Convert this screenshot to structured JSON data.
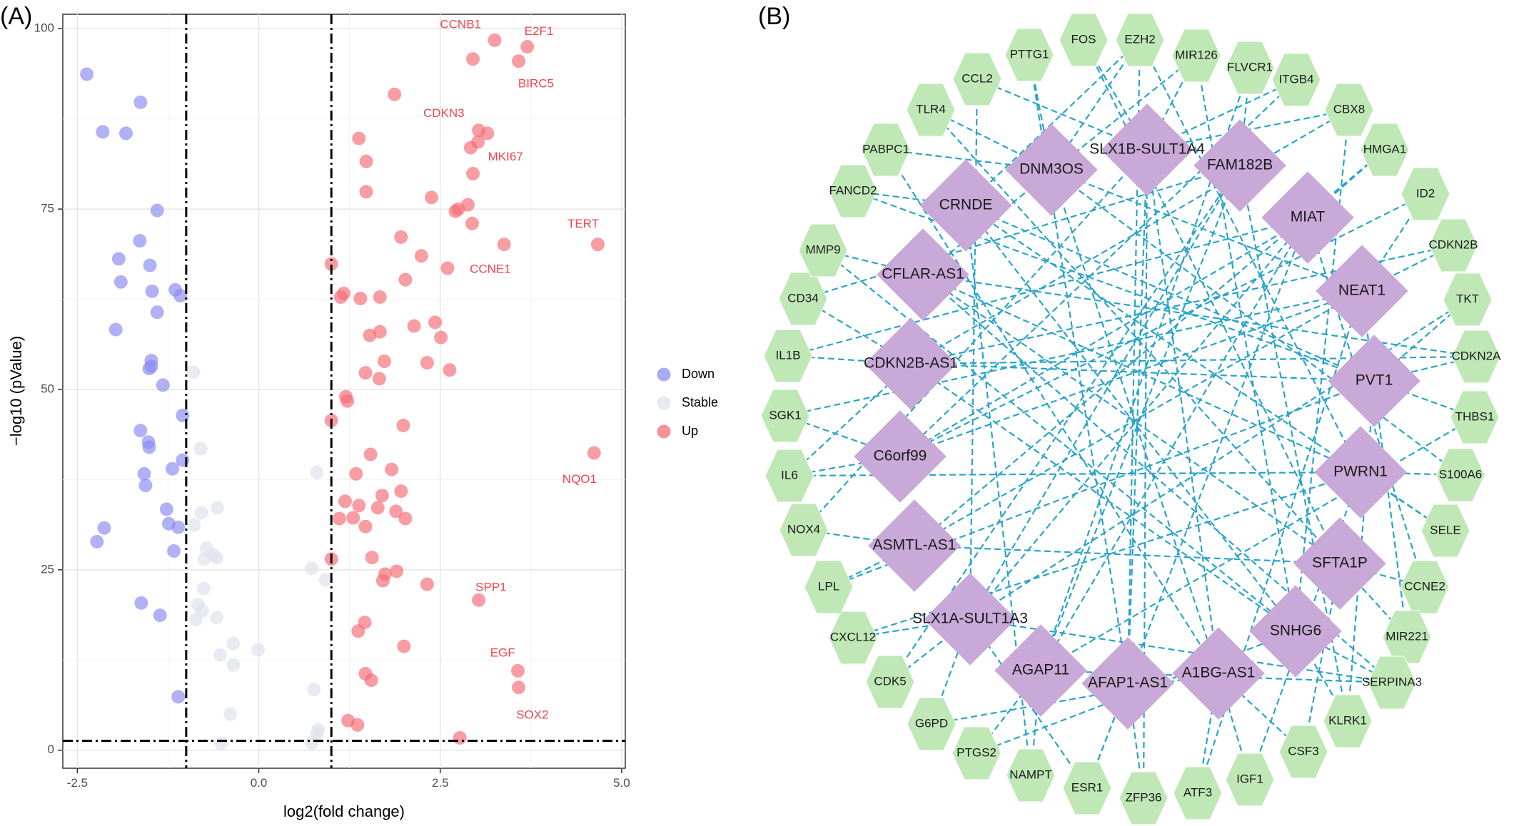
{
  "panel_a_label": "(A)",
  "panel_b_label": "(B)",
  "colors": {
    "down": "#8c8cf0",
    "stable": "#dde2ea",
    "up": "#f46e78",
    "gene_label": "#f0454e",
    "hub_fill": "#c9a9d8",
    "gene_fill": "#bfe8b6",
    "edge": "#2aa4c8"
  },
  "chart_data": [
    {
      "type": "scatter",
      "title": "",
      "xlabel": "log2(fold change)",
      "ylabel": "−log10 (pValue)",
      "xlim": [
        -2.7,
        5.05
      ],
      "ylim": [
        -2.5,
        102
      ],
      "xticks": [
        -2.5,
        0.0,
        2.5,
        5.0
      ],
      "xtick_labels": [
        "-2.5",
        "0.0",
        "2.5",
        "5.0"
      ],
      "yticks": [
        0,
        25,
        50,
        75,
        100
      ],
      "grid": true,
      "legend_position": "right",
      "reference_lines": {
        "vertical": [
          -1,
          1
        ],
        "horizontal": [
          1.3
        ]
      },
      "series": [
        {
          "name": "Down",
          "points": [
            [
              -2.37,
              93.7
            ],
            [
              -1.63,
              89.8
            ],
            [
              -2.15,
              85.7
            ],
            [
              -1.83,
              85.5
            ],
            [
              -1.4,
              74.8
            ],
            [
              -1.64,
              70.6
            ],
            [
              -1.93,
              68.1
            ],
            [
              -1.5,
              67.2
            ],
            [
              -1.9,
              64.9
            ],
            [
              -1.47,
              63.6
            ],
            [
              -1.15,
              63.8
            ],
            [
              -1.08,
              63.0
            ],
            [
              -1.4,
              60.7
            ],
            [
              -1.97,
              58.3
            ],
            [
              -1.48,
              54.0
            ],
            [
              -1.51,
              52.9
            ],
            [
              -1.48,
              53.2
            ],
            [
              -1.32,
              50.6
            ],
            [
              -1.05,
              46.4
            ],
            [
              -1.63,
              44.3
            ],
            [
              -1.52,
              42.7
            ],
            [
              -1.51,
              42.0
            ],
            [
              -1.05,
              40.2
            ],
            [
              -1.19,
              39.0
            ],
            [
              -1.58,
              38.3
            ],
            [
              -1.56,
              36.7
            ],
            [
              -1.27,
              33.4
            ],
            [
              -1.24,
              31.4
            ],
            [
              -1.11,
              30.9
            ],
            [
              -2.13,
              30.8
            ],
            [
              -2.23,
              28.9
            ],
            [
              -1.17,
              27.6
            ],
            [
              -1.62,
              20.4
            ],
            [
              -1.36,
              18.7
            ],
            [
              -1.11,
              7.4
            ]
          ]
        },
        {
          "name": "Stable",
          "points": [
            [
              -0.9,
              52.4
            ],
            [
              -0.8,
              41.8
            ],
            [
              0.8,
              38.5
            ],
            [
              -0.57,
              33.6
            ],
            [
              -0.79,
              32.9
            ],
            [
              -0.89,
              31.2
            ],
            [
              -0.72,
              28.0
            ],
            [
              -0.63,
              27.1
            ],
            [
              -0.58,
              26.7
            ],
            [
              -0.75,
              26.5
            ],
            [
              0.73,
              25.2
            ],
            [
              0.92,
              23.6
            ],
            [
              -0.76,
              22.4
            ],
            [
              -0.84,
              20.2
            ],
            [
              -0.78,
              19.3
            ],
            [
              -0.58,
              18.4
            ],
            [
              -0.87,
              18.1
            ],
            [
              -0.35,
              14.8
            ],
            [
              -0.01,
              13.9
            ],
            [
              -0.53,
              13.2
            ],
            [
              -0.35,
              11.8
            ],
            [
              0.76,
              8.4
            ],
            [
              -0.39,
              5.0
            ],
            [
              0.82,
              2.8
            ],
            [
              0.8,
              2.3
            ],
            [
              0.73,
              1.0
            ],
            [
              -0.52,
              0.9
            ]
          ]
        },
        {
          "name": "Up",
          "points": [
            [
              3.25,
              98.4
            ],
            [
              3.7,
              97.5
            ],
            [
              3.58,
              95.5
            ],
            [
              2.95,
              95.8
            ],
            [
              1.87,
              90.9
            ],
            [
              3.03,
              85.9
            ],
            [
              3.15,
              85.5
            ],
            [
              3.02,
              84.3
            ],
            [
              2.92,
              83.5
            ],
            [
              1.38,
              84.8
            ],
            [
              1.48,
              81.6
            ],
            [
              2.95,
              79.9
            ],
            [
              1.48,
              77.4
            ],
            [
              2.38,
              76.6
            ],
            [
              2.88,
              75.6
            ],
            [
              2.75,
              75.0
            ],
            [
              2.71,
              74.7
            ],
            [
              2.94,
              73.0
            ],
            [
              1.96,
              71.1
            ],
            [
              3.38,
              70.1
            ],
            [
              4.67,
              70.1
            ],
            [
              2.24,
              68.5
            ],
            [
              1.0,
              67.4
            ],
            [
              2.6,
              66.8
            ],
            [
              2.02,
              65.2
            ],
            [
              1.17,
              63.3
            ],
            [
              1.13,
              62.8
            ],
            [
              1.4,
              62.6
            ],
            [
              1.67,
              62.8
            ],
            [
              2.43,
              59.3
            ],
            [
              2.14,
              58.8
            ],
            [
              1.67,
              58.0
            ],
            [
              1.53,
              57.5
            ],
            [
              2.51,
              57.2
            ],
            [
              1.73,
              53.9
            ],
            [
              2.32,
              53.7
            ],
            [
              2.63,
              52.7
            ],
            [
              1.47,
              52.3
            ],
            [
              1.66,
              51.5
            ],
            [
              1.2,
              49.0
            ],
            [
              1.22,
              48.4
            ],
            [
              1.0,
              45.7
            ],
            [
              1.99,
              45.0
            ],
            [
              4.62,
              41.2
            ],
            [
              1.54,
              41.0
            ],
            [
              1.83,
              38.9
            ],
            [
              1.34,
              38.3
            ],
            [
              1.96,
              35.9
            ],
            [
              1.7,
              35.3
            ],
            [
              1.19,
              34.5
            ],
            [
              1.38,
              33.9
            ],
            [
              1.64,
              33.6
            ],
            [
              1.89,
              33.1
            ],
            [
              1.3,
              32.2
            ],
            [
              1.11,
              32.1
            ],
            [
              2.02,
              32.1
            ],
            [
              1.47,
              31.0
            ],
            [
              1.0,
              26.5
            ],
            [
              1.56,
              26.7
            ],
            [
              1.9,
              24.8
            ],
            [
              1.74,
              24.4
            ],
            [
              1.71,
              23.5
            ],
            [
              2.32,
              23.0
            ],
            [
              3.03,
              20.8
            ],
            [
              1.46,
              17.7
            ],
            [
              1.37,
              16.5
            ],
            [
              2.0,
              14.4
            ],
            [
              3.57,
              11.0
            ],
            [
              1.47,
              10.6
            ],
            [
              1.55,
              9.7
            ],
            [
              3.58,
              8.7
            ],
            [
              1.23,
              4.1
            ],
            [
              1.36,
              3.5
            ],
            [
              2.77,
              1.7
            ]
          ]
        }
      ],
      "gene_labels": [
        {
          "text": "CCNB1",
          "x": 2.78,
          "y": 100.5
        },
        {
          "text": "E2F1",
          "x": 3.86,
          "y": 99.6
        },
        {
          "text": "BIRC5",
          "x": 3.82,
          "y": 92.3
        },
        {
          "text": "CDKN3",
          "x": 2.55,
          "y": 88.2
        },
        {
          "text": "MKI67",
          "x": 3.4,
          "y": 82.2
        },
        {
          "text": "TERT",
          "x": 4.47,
          "y": 72.9
        },
        {
          "text": "CCNE1",
          "x": 3.19,
          "y": 66.6
        },
        {
          "text": "NQO1",
          "x": 4.42,
          "y": 37.5
        },
        {
          "text": "SPP1",
          "x": 3.2,
          "y": 22.5
        },
        {
          "text": "EGF",
          "x": 3.36,
          "y": 13.4
        },
        {
          "text": "SOX2",
          "x": 3.77,
          "y": 4.8
        }
      ]
    },
    {
      "type": "network",
      "hub_nodes": [
        "SLX1B-SULT1A4",
        "FAM182B",
        "MIAT",
        "NEAT1",
        "PVT1",
        "PWRN1",
        "SFTA1P",
        "SNHG6",
        "A1BG-AS1",
        "AFAP1-AS1",
        "AGAP11",
        "SLX1A-SULT1A3",
        "ASMTL-AS1",
        "C6orf99",
        "CDKN2B-AS1",
        "CFLAR-AS1",
        "CRNDE",
        "DNM3OS"
      ],
      "gene_nodes": [
        "EZH2",
        "MIR126",
        "FLVCR1",
        "ITGB4",
        "CBX8",
        "HMGA1",
        "ID2",
        "CDKN2B",
        "TKT",
        "CDKN2A",
        "THBS1",
        "S100A6",
        "SELE",
        "CCNE2",
        "MIR221",
        "SERPINA3",
        "KLRK1",
        "CSF3",
        "IGF1",
        "ATF3",
        "ZFP36",
        "ESR1",
        "NAMPT",
        "PTGS2",
        "G6PD",
        "CDK5",
        "CXCL12",
        "LPL",
        "NOX4",
        "IL6",
        "SGK1",
        "IL1B",
        "CD34",
        "MMP9",
        "FANCD2",
        "PABPC1",
        "TLR4",
        "CCL2",
        "PTTG1",
        "FOS"
      ]
    }
  ]
}
